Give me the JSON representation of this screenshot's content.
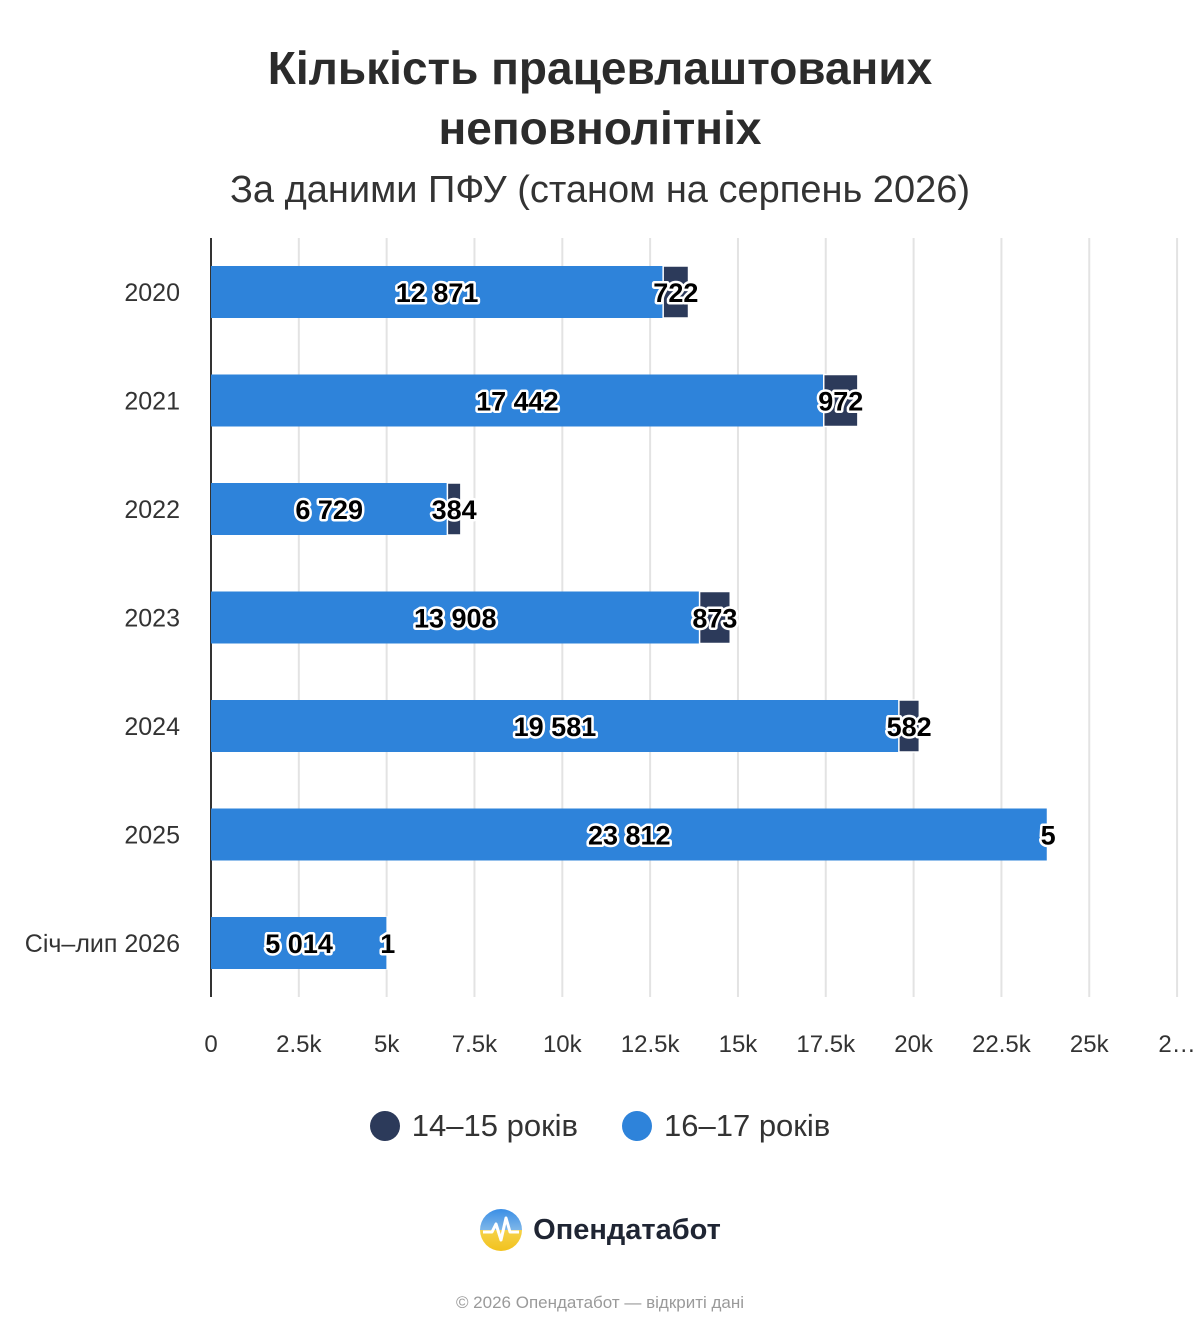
{
  "chart_data": {
    "type": "bar",
    "orientation": "horizontal",
    "stacked": true,
    "title": "Кількість працевлаштованих неповнолітніх",
    "title_lines": [
      "Кількість працевлаштованих",
      "неповнолітніх"
    ],
    "subtitle": "За даними ПФУ (станом на серпень 2026)",
    "categories": [
      "2020",
      "2021",
      "2022",
      "2023",
      "2024",
      "2025",
      "Січ–лип 2026"
    ],
    "series": [
      {
        "name": "16–17 років",
        "color": "#2e83da",
        "values": [
          12871,
          17442,
          6729,
          13908,
          19581,
          23812,
          5014
        ],
        "labels": [
          "12 871",
          "17 442",
          "6 729",
          "13 908",
          "19 581",
          "23 812",
          "5 014"
        ]
      },
      {
        "name": "14–15 років",
        "color": "#2c3a5a",
        "values": [
          722,
          972,
          384,
          873,
          582,
          5,
          1
        ],
        "labels": [
          "722",
          "972",
          "384",
          "873",
          "582",
          "5",
          "1"
        ]
      }
    ],
    "xlim": [
      0,
      27500
    ],
    "xticks": [
      "0",
      "2.5k",
      "5k",
      "7.5k",
      "10k",
      "12.5k",
      "15k",
      "17.5k",
      "20k",
      "22.5k",
      "25k",
      "2…"
    ],
    "xtick_values": [
      0,
      2500,
      5000,
      7500,
      10000,
      12500,
      15000,
      17500,
      20000,
      22500,
      25000,
      27500
    ],
    "grid": true,
    "legend_position": "bottom"
  },
  "legend": [
    {
      "label": "14–15 років",
      "color": "#2c3a5a"
    },
    {
      "label": "16–17 років",
      "color": "#2e83da"
    }
  ],
  "branding": {
    "logo_text": "Опендатабот",
    "logo_icon": "opendatabot-logo-icon"
  },
  "footer": "© 2026 Опендатабот — відкриті дані"
}
